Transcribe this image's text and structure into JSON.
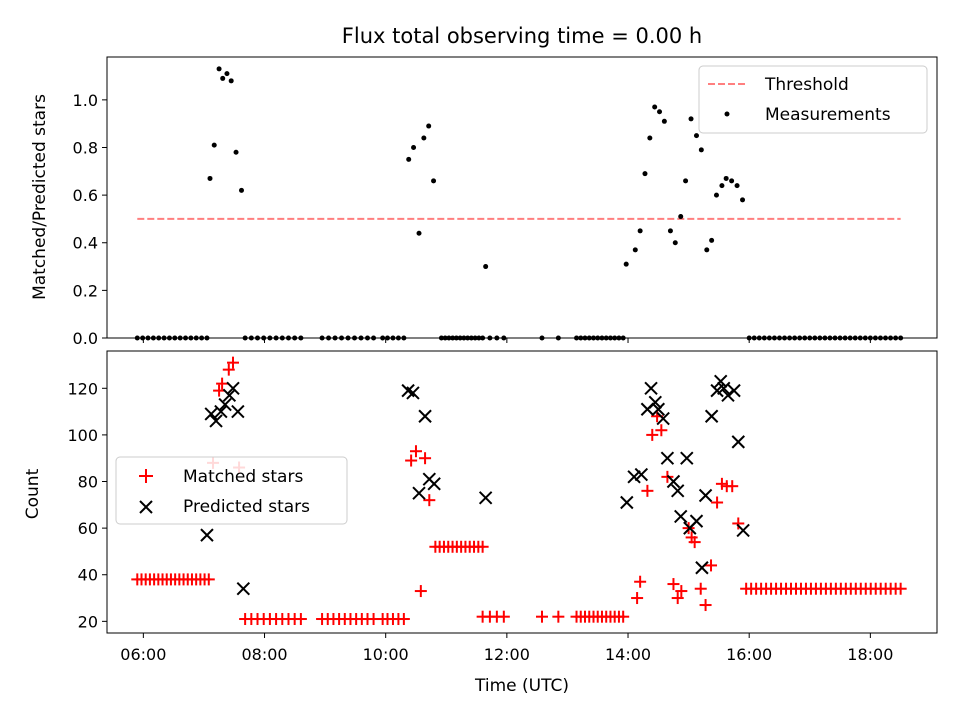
{
  "title": "Flux total observing time = 0.00 h",
  "colors": {
    "threshold": "#ff7f7f",
    "measurement": "#000000",
    "matched": "#ff0000",
    "predicted": "#000000"
  },
  "chart_data": [
    {
      "type": "scatter",
      "ylabel": "Matched/Predicted stars",
      "xlim": [
        5.4,
        19.1
      ],
      "ylim": [
        0,
        1.18
      ],
      "yticks": [
        0.0,
        0.2,
        0.4,
        0.6,
        0.8,
        1.0
      ],
      "ytick_labels": [
        "0.0",
        "0.2",
        "0.4",
        "0.6",
        "0.8",
        "1.0"
      ],
      "legend": {
        "position": "top-right",
        "entries": [
          "Threshold",
          "Measurements"
        ]
      },
      "threshold": {
        "name": "Threshold",
        "value": 0.5,
        "x": [
          5.9,
          18.5
        ]
      },
      "series": [
        {
          "name": "Measurements",
          "points": [
            [
              7.1,
              0.67
            ],
            [
              7.17,
              0.81
            ],
            [
              7.25,
              1.13
            ],
            [
              7.31,
              1.09
            ],
            [
              7.38,
              1.11
            ],
            [
              7.45,
              1.08
            ],
            [
              7.53,
              0.78
            ],
            [
              7.62,
              0.62
            ],
            [
              10.38,
              0.75
            ],
            [
              10.46,
              0.8
            ],
            [
              10.55,
              0.44
            ],
            [
              10.63,
              0.84
            ],
            [
              10.71,
              0.89
            ],
            [
              10.79,
              0.66
            ],
            [
              11.65,
              0.3
            ],
            [
              13.97,
              0.31
            ],
            [
              14.12,
              0.37
            ],
            [
              14.2,
              0.45
            ],
            [
              14.28,
              0.69
            ],
            [
              14.36,
              0.84
            ],
            [
              14.44,
              0.97
            ],
            [
              14.52,
              0.95
            ],
            [
              14.6,
              0.91
            ],
            [
              14.7,
              0.45
            ],
            [
              14.78,
              0.4
            ],
            [
              14.87,
              0.51
            ],
            [
              14.95,
              0.66
            ],
            [
              15.04,
              0.92
            ],
            [
              15.13,
              0.85
            ],
            [
              15.21,
              0.79
            ],
            [
              15.3,
              0.37
            ],
            [
              15.38,
              0.41
            ],
            [
              15.46,
              0.6
            ],
            [
              15.55,
              0.64
            ],
            [
              15.62,
              0.67
            ],
            [
              15.71,
              0.66
            ],
            [
              15.8,
              0.64
            ],
            [
              15.89,
              0.58
            ]
          ],
          "zero_segments": [
            [
              5.9,
              7.05,
              14
            ],
            [
              7.68,
              8.6,
              10
            ],
            [
              8.95,
              9.7,
              8
            ],
            [
              9.8,
              9.95,
              2
            ],
            [
              10.03,
              10.3,
              4
            ],
            [
              10.92,
              11.6,
              12
            ],
            [
              11.72,
              11.95,
              3
            ],
            [
              12.58,
              12.58,
              1
            ],
            [
              12.85,
              12.85,
              1
            ],
            [
              13.15,
              13.92,
              12
            ],
            [
              16.0,
              18.5,
              31
            ]
          ]
        }
      ]
    },
    {
      "type": "scatter",
      "xlabel": "Time (UTC)",
      "ylabel": "Count",
      "xlim": [
        5.4,
        19.1
      ],
      "ylim": [
        15,
        136
      ],
      "yticks": [
        20,
        40,
        60,
        80,
        100,
        120
      ],
      "ytick_labels": [
        "20",
        "40",
        "60",
        "80",
        "100",
        "120"
      ],
      "xticks": [
        6,
        8,
        10,
        12,
        14,
        16,
        18
      ],
      "xtick_labels": [
        "06:00",
        "08:00",
        "10:00",
        "12:00",
        "14:00",
        "16:00",
        "18:00"
      ],
      "legend": {
        "position": "center-left",
        "entries": [
          "Matched stars",
          "Predicted stars"
        ]
      },
      "series": [
        {
          "name": "Matched stars",
          "points": [
            [
              7.15,
              88
            ],
            [
              7.25,
              119
            ],
            [
              7.3,
              122
            ],
            [
              7.41,
              128
            ],
            [
              7.48,
              131
            ],
            [
              7.58,
              86
            ],
            [
              10.42,
              89
            ],
            [
              10.5,
              93
            ],
            [
              10.58,
              33
            ],
            [
              10.65,
              90
            ],
            [
              10.72,
              72
            ],
            [
              11.6,
              22
            ],
            [
              14.15,
              30
            ],
            [
              14.2,
              37
            ],
            [
              14.32,
              76
            ],
            [
              14.4,
              100
            ],
            [
              14.48,
              108
            ],
            [
              14.55,
              102
            ],
            [
              14.65,
              82
            ],
            [
              14.75,
              36
            ],
            [
              14.82,
              30
            ],
            [
              14.88,
              33
            ],
            [
              15.0,
              60
            ],
            [
              15.05,
              56
            ],
            [
              15.1,
              54
            ],
            [
              15.2,
              34
            ],
            [
              15.28,
              27
            ],
            [
              15.37,
              44
            ],
            [
              15.47,
              71
            ],
            [
              15.55,
              79
            ],
            [
              15.63,
              78
            ],
            [
              15.72,
              78
            ],
            [
              15.82,
              62
            ]
          ],
          "flat_segments": [
            [
              5.9,
              7.08,
              38,
              18
            ],
            [
              7.68,
              8.6,
              21,
              10
            ],
            [
              8.95,
              9.7,
              21,
              9
            ],
            [
              9.8,
              9.95,
              21,
              2
            ],
            [
              10.03,
              10.3,
              21,
              4
            ],
            [
              10.82,
              11.6,
              52,
              12
            ],
            [
              11.72,
              11.95,
              22,
              3
            ],
            [
              12.58,
              12.58,
              22,
              1
            ],
            [
              12.85,
              12.85,
              22,
              1
            ],
            [
              13.15,
              13.92,
              22,
              12
            ],
            [
              15.95,
              18.5,
              34,
              32
            ]
          ]
        },
        {
          "name": "Predicted stars",
          "points": [
            [
              7.05,
              57
            ],
            [
              7.12,
              109
            ],
            [
              7.2,
              106
            ],
            [
              7.28,
              110
            ],
            [
              7.35,
              113
            ],
            [
              7.42,
              117
            ],
            [
              7.48,
              120
            ],
            [
              7.56,
              110
            ],
            [
              7.65,
              34
            ],
            [
              10.37,
              119
            ],
            [
              10.45,
              118
            ],
            [
              10.55,
              75
            ],
            [
              10.65,
              108
            ],
            [
              10.72,
              81
            ],
            [
              10.8,
              79
            ],
            [
              11.65,
              73
            ],
            [
              13.98,
              71
            ],
            [
              14.1,
              82
            ],
            [
              14.22,
              83
            ],
            [
              14.32,
              111
            ],
            [
              14.38,
              120
            ],
            [
              14.45,
              114
            ],
            [
              14.5,
              111
            ],
            [
              14.58,
              107
            ],
            [
              14.65,
              90
            ],
            [
              14.75,
              80
            ],
            [
              14.82,
              76
            ],
            [
              14.87,
              65
            ],
            [
              14.97,
              90
            ],
            [
              15.02,
              60
            ],
            [
              15.13,
              63
            ],
            [
              15.22,
              43
            ],
            [
              15.28,
              74
            ],
            [
              15.38,
              108
            ],
            [
              15.47,
              119
            ],
            [
              15.53,
              123
            ],
            [
              15.58,
              120
            ],
            [
              15.65,
              117
            ],
            [
              15.75,
              119
            ],
            [
              15.82,
              97
            ],
            [
              15.9,
              59
            ]
          ]
        }
      ]
    }
  ]
}
